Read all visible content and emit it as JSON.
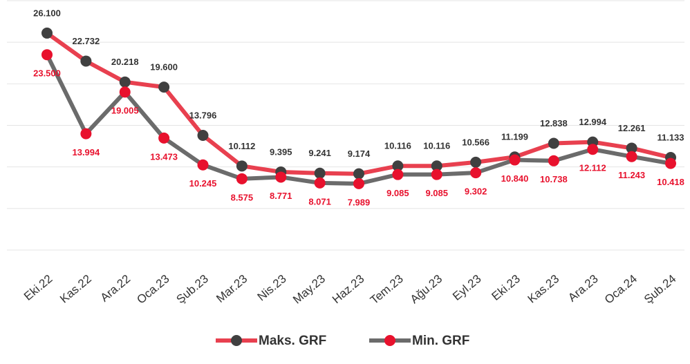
{
  "chart_data": {
    "type": "line",
    "categories": [
      "Eki.22",
      "Kas.22",
      "Ara.22",
      "Oca.23",
      "Şub.23",
      "Mar.23",
      "Nis.23",
      "May.23",
      "Haz.23",
      "Tem.23",
      "Ağu.23",
      "Eyl.23",
      "Eki.23",
      "Kas.23",
      "Ara.23",
      "Oca.24",
      "Şub.24"
    ],
    "series": [
      {
        "name": "Maks. GRF",
        "color": "#e8404f",
        "marker_color": "#404040",
        "label_color": "#333333",
        "values": [
          26100,
          22732,
          20218,
          19600,
          13796,
          10112,
          9395,
          9241,
          9174,
          10116,
          10116,
          10566,
          11199,
          12838,
          12994,
          12261,
          11133
        ],
        "value_labels": [
          "26.100",
          "22.732",
          "20.218",
          "19.600",
          "13.796",
          "10.112",
          "9.395",
          "9.241",
          "9.174",
          "10.116",
          "10.116",
          "10.566",
          "11.199",
          "12.838",
          "12.994",
          "12.261",
          "11.133"
        ]
      },
      {
        "name": "Min. GRF",
        "color": "#6b6b6b",
        "marker_color": "#e8112d",
        "label_color": "#e8112d",
        "values": [
          23500,
          13994,
          19005,
          13473,
          10245,
          8575,
          8771,
          8071,
          7989,
          9085,
          9085,
          9302,
          10840,
          10738,
          12112,
          11243,
          10418
        ],
        "value_labels": [
          "23.500",
          "13.994",
          "19.005",
          "13.473",
          "10.245",
          "8.575",
          "8.771",
          "8.071",
          "7.989",
          "9.085",
          "9.085",
          "9.302",
          "10.840",
          "10.738",
          "12.112",
          "11.243",
          "10.418"
        ]
      }
    ],
    "ylim": [
      0,
      30000
    ],
    "yticks": [
      0,
      5000,
      10000,
      15000,
      20000,
      25000,
      30000
    ],
    "grid": true,
    "legend": "bottom"
  }
}
